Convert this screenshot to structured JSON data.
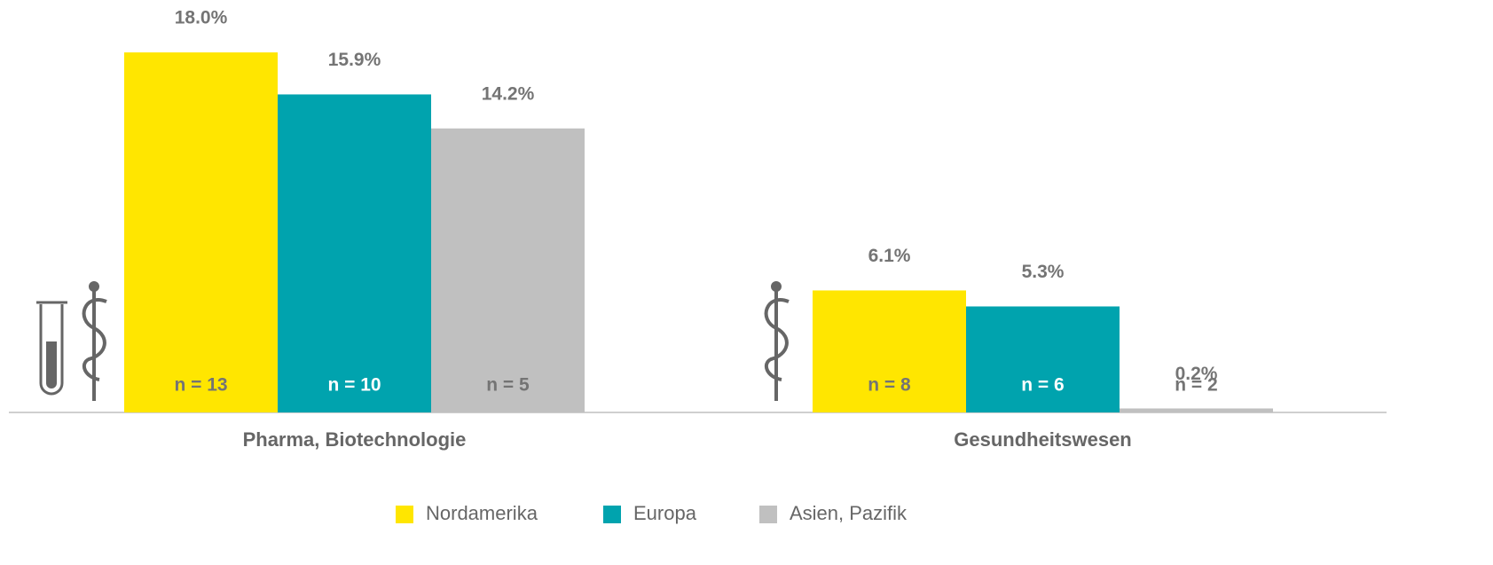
{
  "chart_data": {
    "type": "bar",
    "categories": [
      "Pharma, Biotechnologie",
      "Gesundheitswesen"
    ],
    "series": [
      {
        "name": "Nordamerika",
        "color": "#ffe600",
        "label_color": "#747474",
        "values": [
          18.0,
          6.1
        ],
        "value_labels": [
          "18.0%",
          "6.1%"
        ],
        "n_labels": [
          "n = 13",
          "n = 8"
        ]
      },
      {
        "name": "Europa",
        "color": "#00a3ae",
        "label_color": "#ffffff",
        "values": [
          15.9,
          5.3
        ],
        "value_labels": [
          "15.9%",
          "5.3%"
        ],
        "n_labels": [
          "n = 10",
          "n = 6"
        ]
      },
      {
        "name": "Asien, Pazifik",
        "color": "#c0c0c0",
        "label_color": "#747474",
        "values": [
          14.2,
          0.2
        ],
        "value_labels": [
          "14.2%",
          "0.2%"
        ],
        "n_labels": [
          "n = 5",
          "n = 2"
        ]
      }
    ],
    "legend": "bottom"
  }
}
